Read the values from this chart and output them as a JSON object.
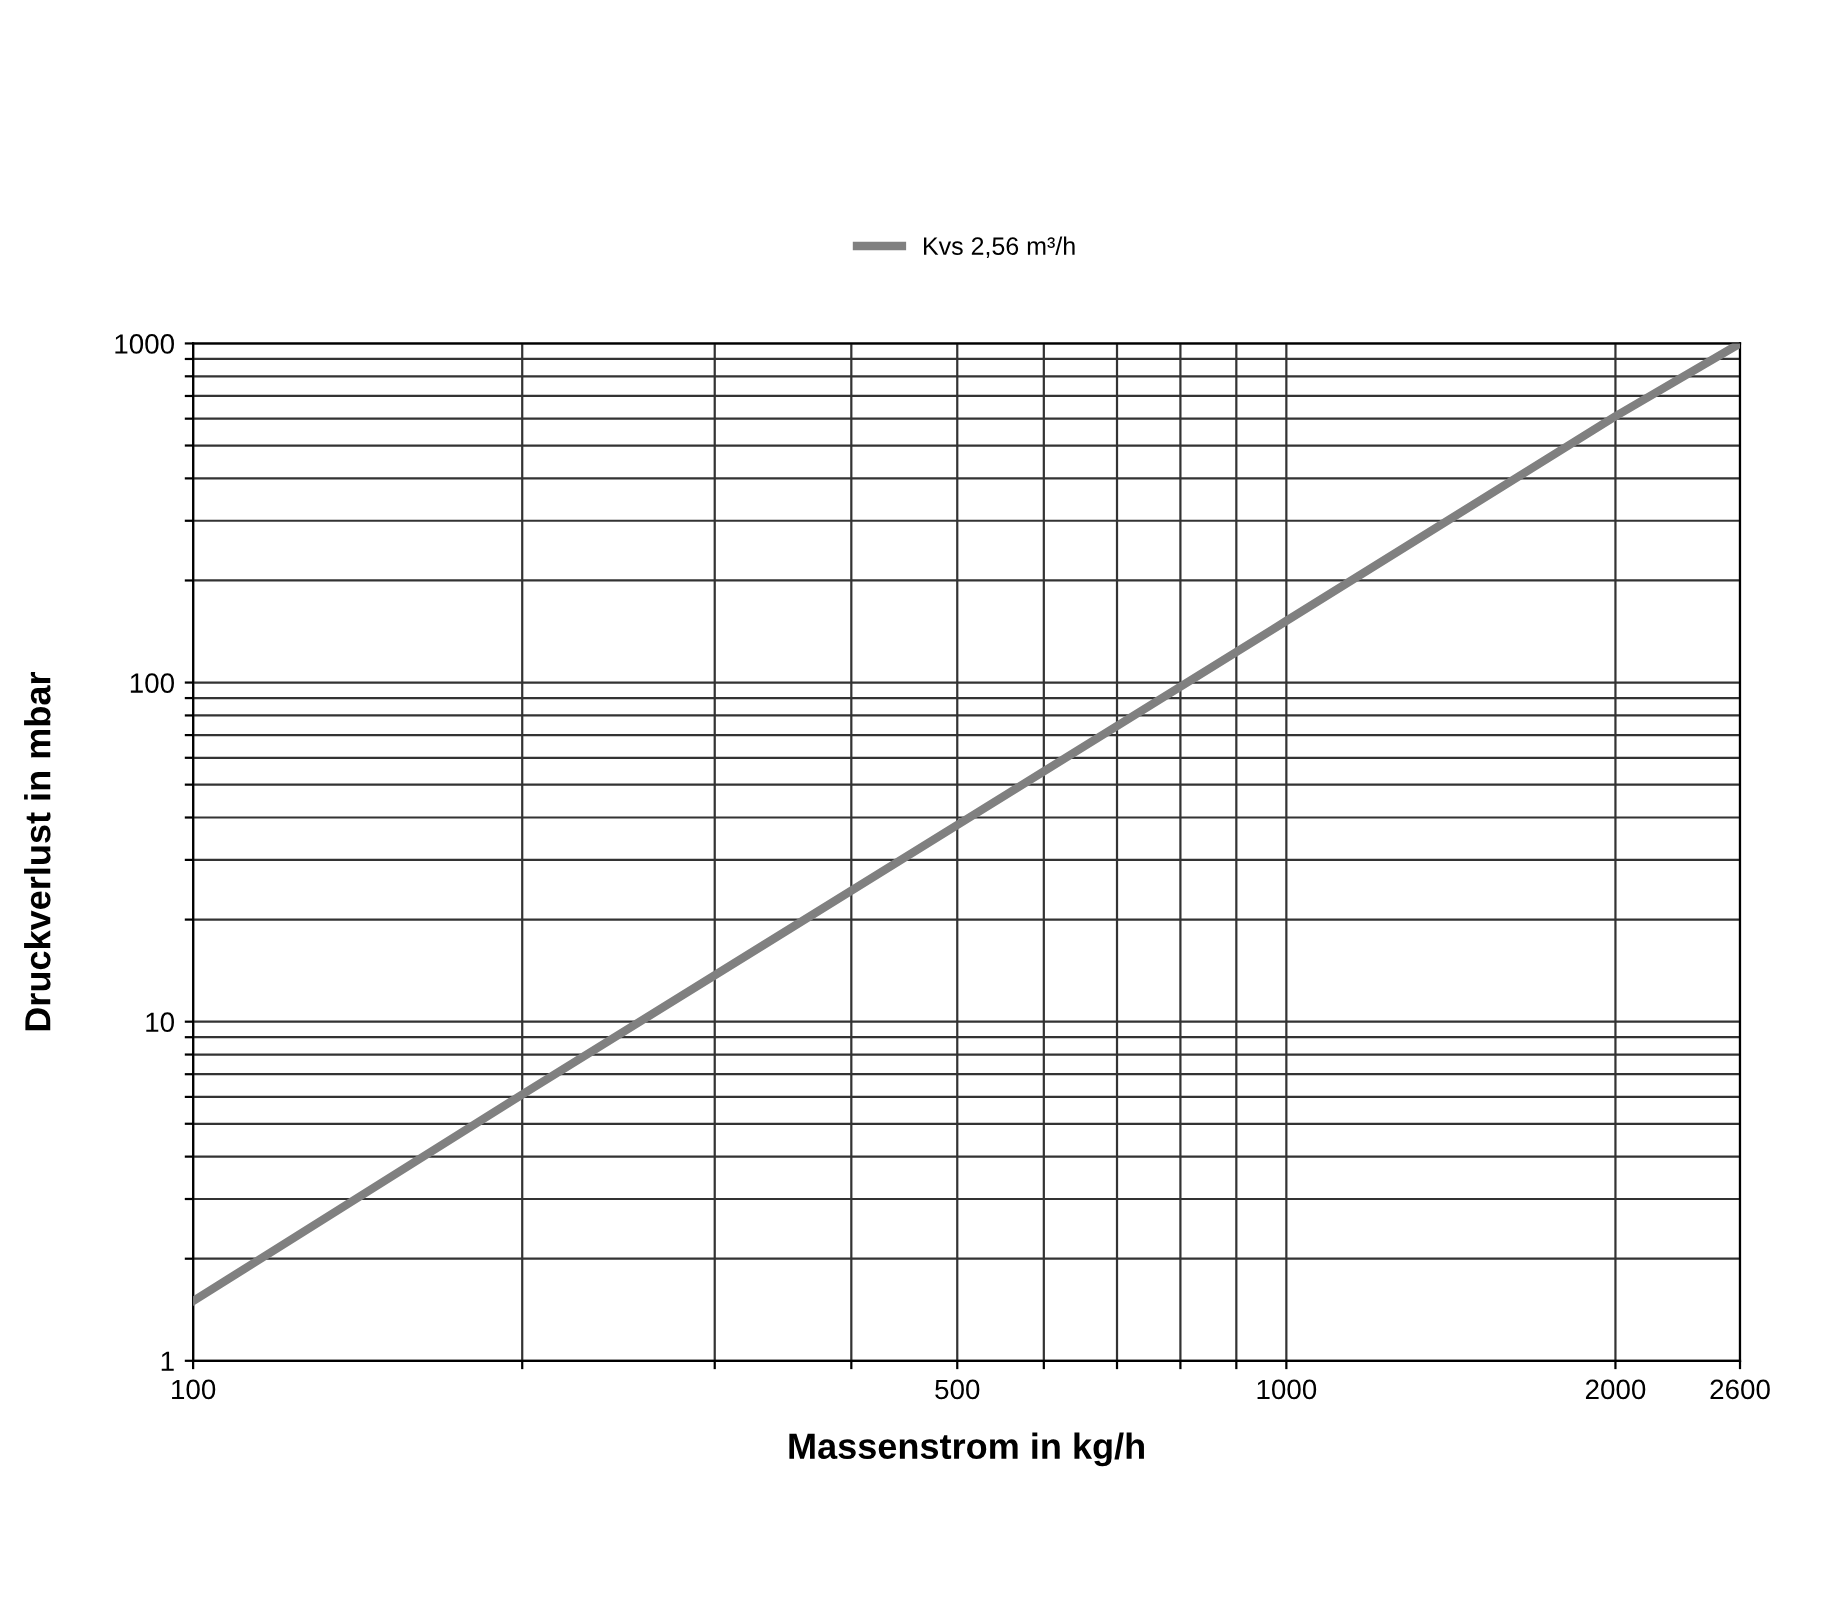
{
  "chart_data": {
    "type": "line",
    "xlabel": "Massenstrom in kg/h",
    "ylabel": "Druckverlust in mbar",
    "log": "xy",
    "grid": true,
    "legend": "top",
    "marker": "none",
    "line_style": "solid",
    "series": [
      {
        "name": "Kvs 2,56 m³/h",
        "color": "#808080",
        "x": [
          100,
          200,
          500,
          1000,
          2000,
          2600
        ],
        "values": [
          1.5,
          6.1,
          38,
          152,
          610,
          1000
        ]
      }
    ],
    "xlim": [
      100,
      2600
    ],
    "ylim": [
      1,
      1000
    ],
    "xticks": [
      100,
      {
        "value": 200,
        "label": null
      },
      {
        "value": 300,
        "label": null
      },
      {
        "value": 400,
        "label": null
      },
      500,
      {
        "value": 600,
        "label": null
      },
      {
        "value": 700,
        "label": null
      },
      {
        "value": 800,
        "label": null
      },
      {
        "value": 900,
        "label": null
      },
      1000,
      2000,
      2600
    ],
    "yticks": [
      1,
      {
        "value": 2,
        "label": null
      },
      {
        "value": 3,
        "label": null
      },
      {
        "value": 4,
        "label": null
      },
      {
        "value": 5,
        "label": null
      },
      {
        "value": 6,
        "label": null
      },
      {
        "value": 7,
        "label": null
      },
      {
        "value": 8,
        "label": null
      },
      {
        "value": 9,
        "label": null
      },
      10,
      {
        "value": 20,
        "label": null
      },
      {
        "value": 30,
        "label": null
      },
      {
        "value": 40,
        "label": null
      },
      {
        "value": 50,
        "label": null
      },
      {
        "value": 60,
        "label": null
      },
      {
        "value": 70,
        "label": null
      },
      {
        "value": 80,
        "label": null
      },
      {
        "value": 90,
        "label": null
      },
      100,
      {
        "value": 200,
        "label": null
      },
      {
        "value": 300,
        "label": null
      },
      {
        "value": 400,
        "label": null
      },
      {
        "value": 500,
        "label": null
      },
      {
        "value": 600,
        "label": null
      },
      {
        "value": 700,
        "label": null
      },
      {
        "value": 800,
        "label": null
      },
      {
        "value": 900,
        "label": null
      },
      1000
    ]
  }
}
